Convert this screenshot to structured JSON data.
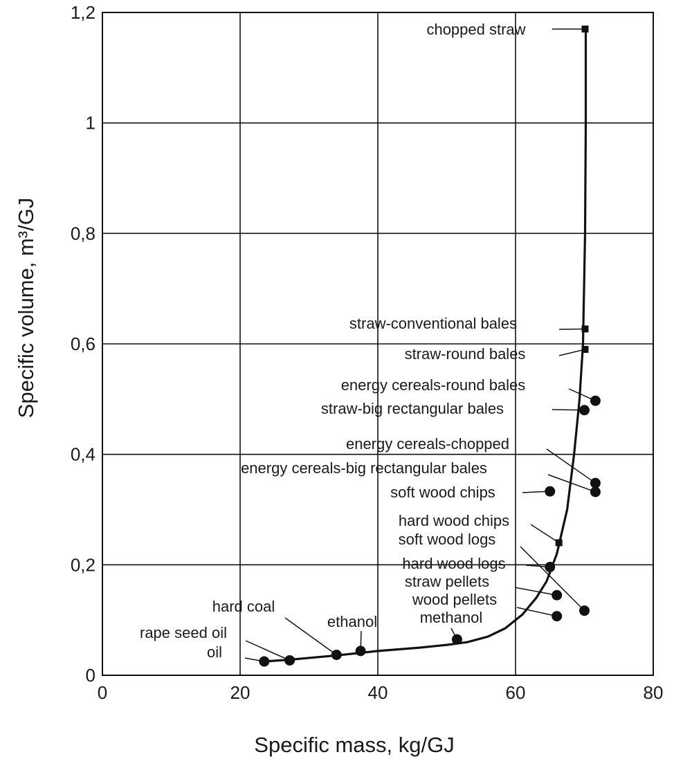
{
  "chart_data": {
    "type": "scatter",
    "xlabel": "Specific mass, kg/GJ",
    "ylabel": "Specific volume, m³/GJ",
    "xlim": [
      0,
      80
    ],
    "ylim": [
      0,
      1.2
    ],
    "x_ticks": [
      "0",
      "20",
      "40",
      "60",
      "80"
    ],
    "y_ticks": [
      "0",
      "0,2",
      "0,4",
      "0,6",
      "0,8",
      "1",
      "1,2"
    ],
    "grid": true,
    "points": [
      {
        "label": "oil",
        "x": 23.5,
        "y": 0.025,
        "marker": "circle"
      },
      {
        "label": "rape seed oil",
        "x": 27.2,
        "y": 0.027,
        "marker": "circle"
      },
      {
        "label": "hard coal",
        "x": 34,
        "y": 0.037,
        "marker": "circle"
      },
      {
        "label": "ethanol",
        "x": 37.5,
        "y": 0.044,
        "marker": "circle"
      },
      {
        "label": "methanol",
        "x": 51.5,
        "y": 0.065,
        "marker": "circle"
      },
      {
        "label": "wood pellets",
        "x": 66,
        "y": 0.107,
        "marker": "circle"
      },
      {
        "label": "straw pellets",
        "x": 66,
        "y": 0.145,
        "marker": "circle"
      },
      {
        "label": "hard wood logs",
        "x": 65,
        "y": 0.196,
        "marker": "circle"
      },
      {
        "label": "soft wood logs",
        "x": 70,
        "y": 0.117,
        "marker": "circle"
      },
      {
        "label": "hard wood chips",
        "x": 66.3,
        "y": 0.24,
        "marker": "square"
      },
      {
        "label": "soft wood chips",
        "x": 65,
        "y": 0.333,
        "marker": "circle"
      },
      {
        "label": "energy cereals-big rectangular bales",
        "x": 71.6,
        "y": 0.332,
        "marker": "circle"
      },
      {
        "label": "energy cereals-chopped",
        "x": 71.6,
        "y": 0.348,
        "marker": "circle"
      },
      {
        "label": "straw-big rectangular bales",
        "x": 70,
        "y": 0.48,
        "marker": "circle"
      },
      {
        "label": "energy cereals-round bales",
        "x": 71.6,
        "y": 0.497,
        "marker": "circle"
      },
      {
        "label": "straw-round bales",
        "x": 70.1,
        "y": 0.59,
        "marker": "square"
      },
      {
        "label": "straw-conventional bales",
        "x": 70.1,
        "y": 0.627,
        "marker": "square"
      },
      {
        "label": "chopped straw",
        "x": 70.1,
        "y": 1.17,
        "marker": "square"
      }
    ],
    "trend_curve": {
      "x": [
        23.5,
        27,
        34,
        40,
        46,
        50,
        53,
        56,
        58.5,
        61,
        63,
        64.5,
        66,
        67.5,
        68.5,
        69.3,
        69.8,
        70.1,
        70.2,
        70.2
      ],
      "y": [
        0.025,
        0.028,
        0.036,
        0.044,
        0.05,
        0.055,
        0.06,
        0.07,
        0.085,
        0.11,
        0.14,
        0.17,
        0.22,
        0.3,
        0.4,
        0.5,
        0.6,
        0.8,
        1.0,
        1.17
      ]
    }
  }
}
